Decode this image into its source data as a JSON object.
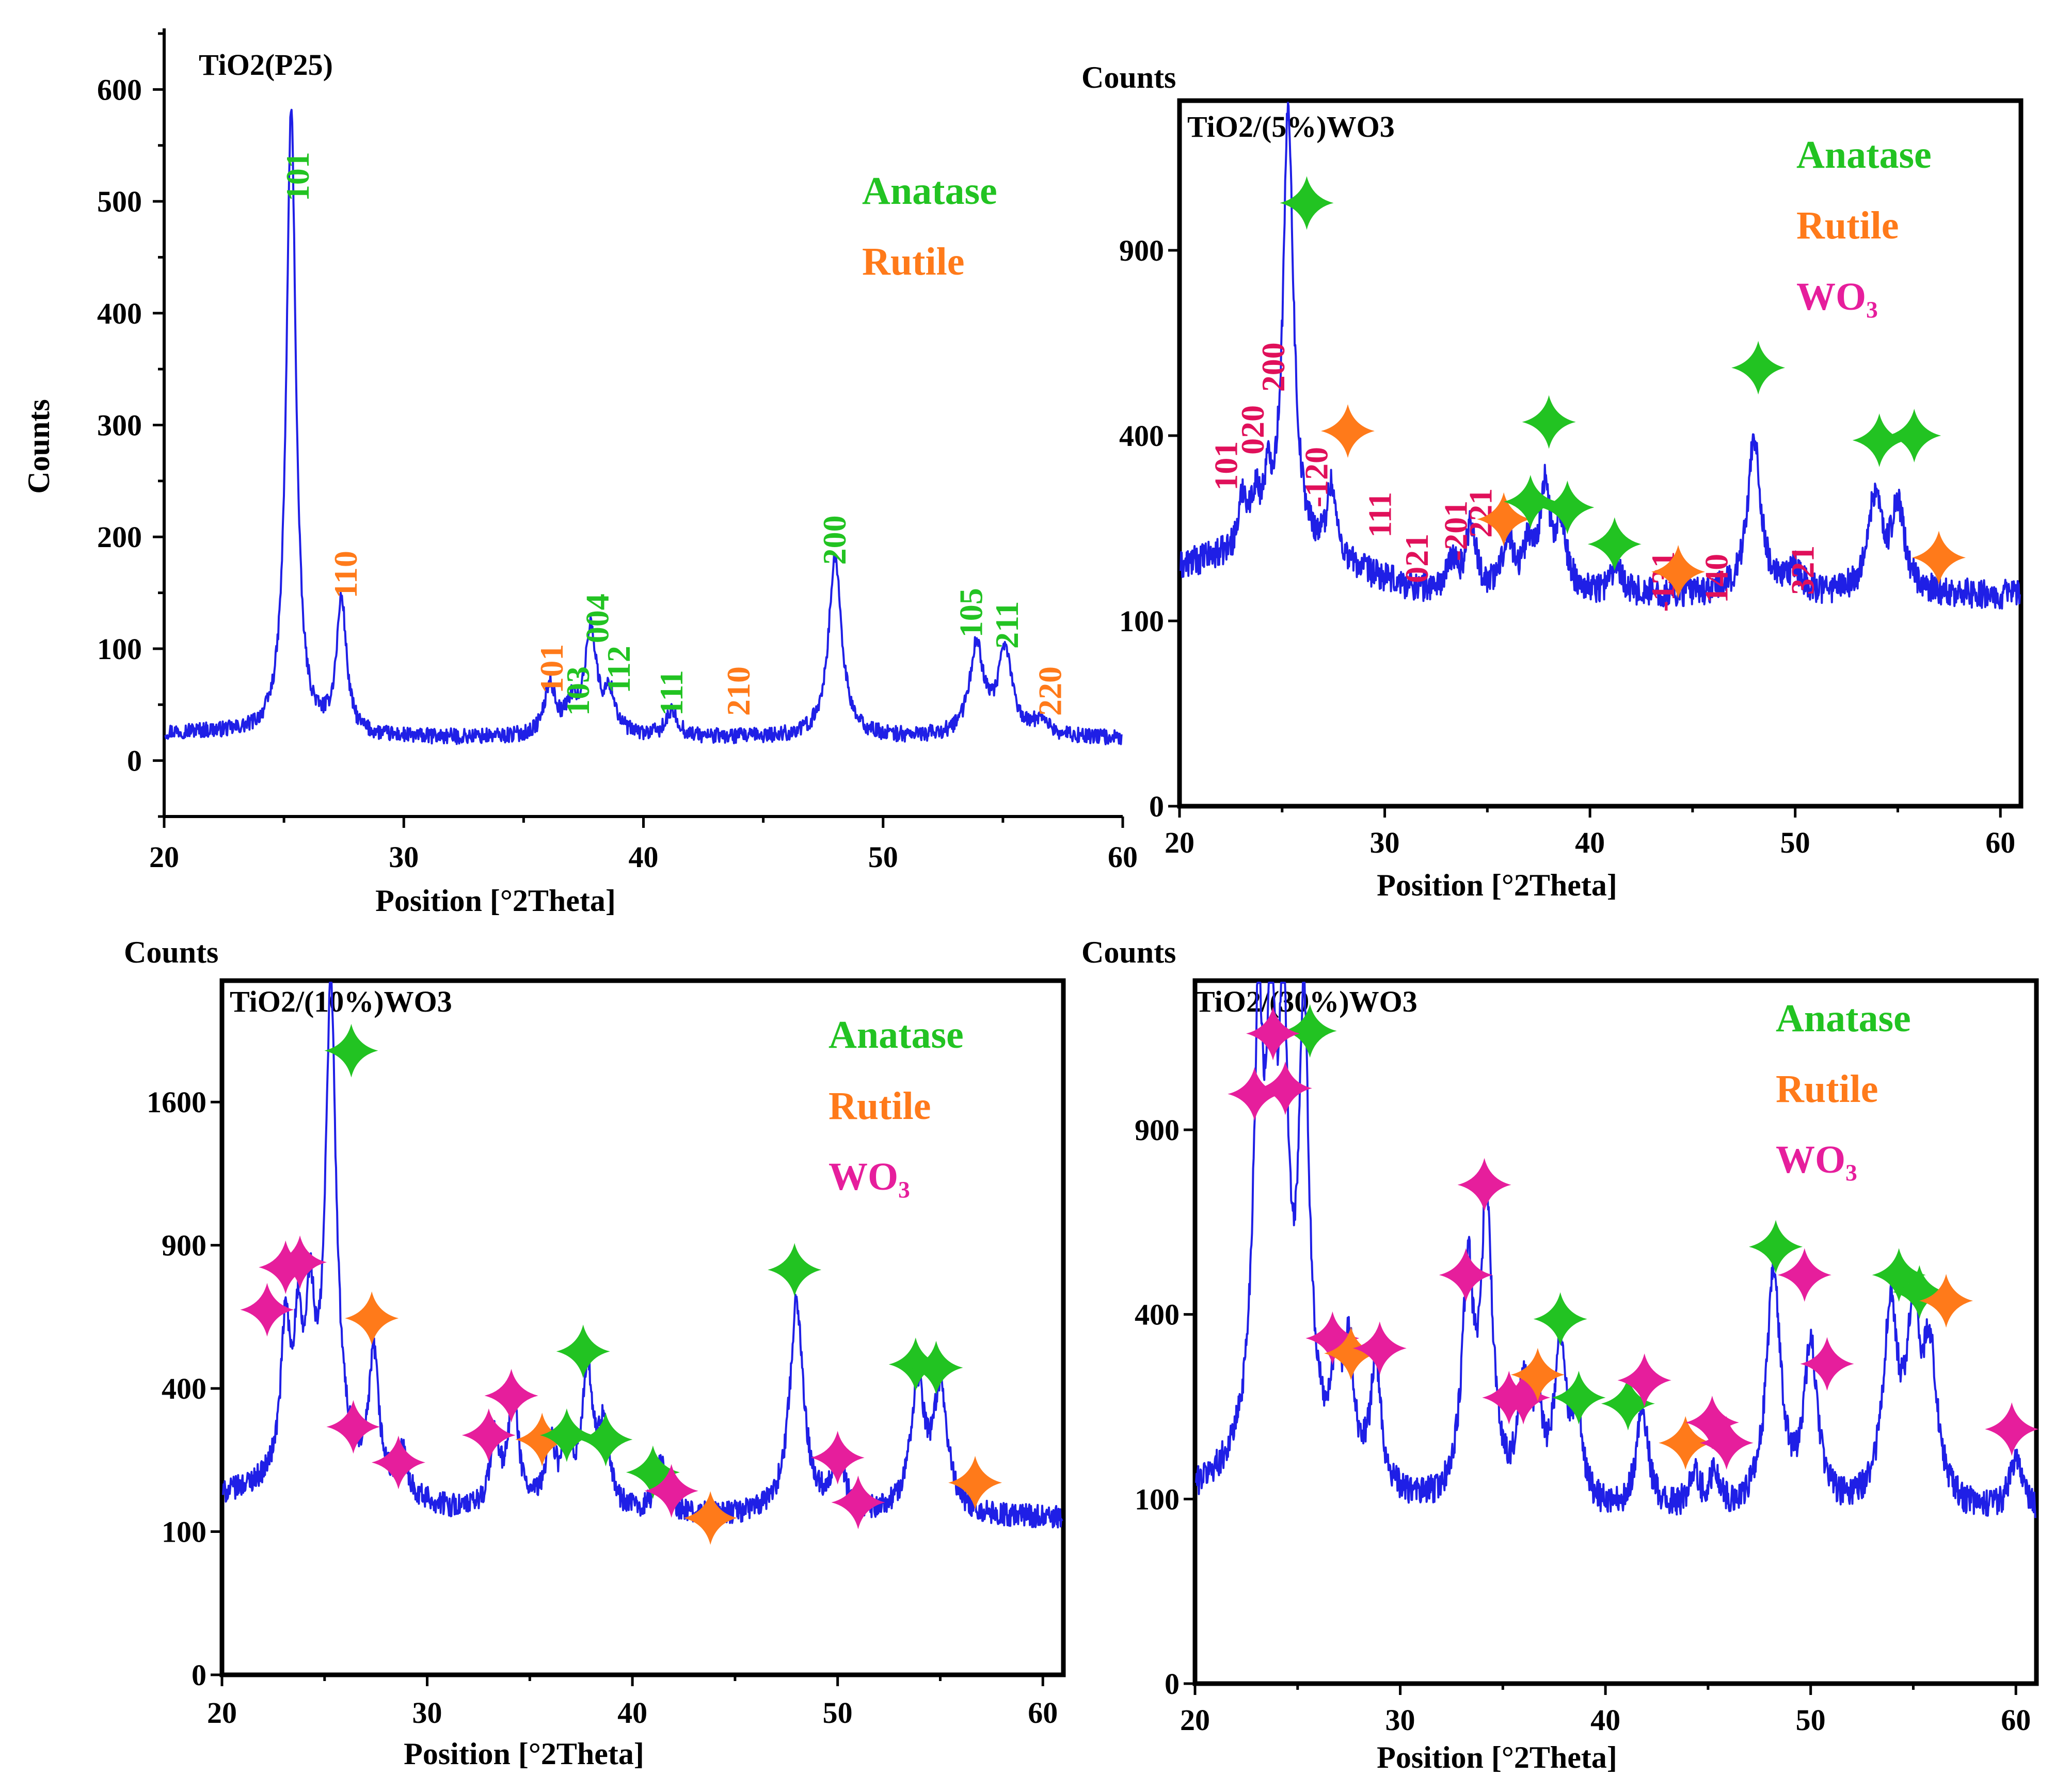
{
  "colors": {
    "anatase": "#22c322",
    "rutile": "#ff7a1a",
    "wo3": "#e61e9c",
    "wo3_label": "#e0105a",
    "trace": "#1f1fe6"
  },
  "chart_data": [
    {
      "type": "line",
      "title": "TiO2(P25)",
      "xlabel": "Position [°2Theta]",
      "ylabel": "Counts",
      "xlim": [
        20,
        60
      ],
      "ylim": [
        -50,
        650
      ],
      "xticks": [
        "20",
        "30",
        "40",
        "50",
        "60"
      ],
      "yticks": [
        "0",
        "100",
        "200",
        "300",
        "400",
        "500",
        "600"
      ],
      "baseline": 20,
      "peaks": [
        [
          25.3,
          560
        ],
        [
          27.4,
          120
        ],
        [
          36.1,
          45
        ],
        [
          37.0,
          25
        ],
        [
          37.8,
          95
        ],
        [
          38.6,
          35
        ],
        [
          41.2,
          22
        ],
        [
          48.0,
          160
        ],
        [
          53.9,
          80
        ],
        [
          55.1,
          75
        ],
        [
          56.6,
          15
        ]
      ],
      "legend": [
        {
          "label": "Anatase",
          "phase": "anatase"
        },
        {
          "label": "Rutile",
          "phase": "rutile"
        }
      ],
      "annotations": [
        {
          "text": "101",
          "x": 25.6,
          "y": 500,
          "phase": "anatase"
        },
        {
          "text": "110",
          "x": 27.6,
          "y": 145,
          "phase": "rutile"
        },
        {
          "text": "101",
          "x": 36.2,
          "y": 60,
          "phase": "rutile"
        },
        {
          "text": "103",
          "x": 37.3,
          "y": 40,
          "phase": "anatase"
        },
        {
          "text": "004",
          "x": 38.1,
          "y": 105,
          "phase": "anatase"
        },
        {
          "text": "112",
          "x": 39.0,
          "y": 60,
          "phase": "anatase"
        },
        {
          "text": "111",
          "x": 41.2,
          "y": 40,
          "phase": "anatase"
        },
        {
          "text": "210",
          "x": 44.0,
          "y": 40,
          "phase": "rutile"
        },
        {
          "text": "200",
          "x": 48.0,
          "y": 175,
          "phase": "anatase"
        },
        {
          "text": "105",
          "x": 53.7,
          "y": 110,
          "phase": "anatase"
        },
        {
          "text": "211",
          "x": 55.2,
          "y": 100,
          "phase": "anatase"
        },
        {
          "text": "220",
          "x": 57.0,
          "y": 40,
          "phase": "rutile"
        }
      ]
    },
    {
      "type": "line",
      "title": "TiO2/(5%)WO3",
      "xlabel": "Position [°2Theta]",
      "ylabel": "Counts",
      "xlim": [
        20,
        61
      ],
      "yscale": "sqrt",
      "ylim": [
        0,
        1450
      ],
      "xticks": [
        "20",
        "30",
        "40",
        "50",
        "60"
      ],
      "yticks": [
        "0",
        "100",
        "400",
        "900"
      ],
      "ytick_values": [
        0,
        100,
        400,
        900
      ],
      "baseline": 130,
      "peaks": [
        [
          23.1,
          90
        ],
        [
          23.7,
          80
        ],
        [
          24.3,
          100
        ],
        [
          25.3,
          1250
        ],
        [
          27.4,
          120
        ],
        [
          33.3,
          40
        ],
        [
          34.2,
          100
        ],
        [
          36.0,
          80
        ],
        [
          37.0,
          60
        ],
        [
          37.8,
          160
        ],
        [
          38.6,
          90
        ],
        [
          41.3,
          40
        ],
        [
          48.0,
          270
        ],
        [
          50.0,
          30
        ],
        [
          53.9,
          150
        ],
        [
          55.0,
          130
        ]
      ],
      "legend": [
        {
          "label": "Anatase",
          "phase": "anatase"
        },
        {
          "label": "Rutile",
          "phase": "rutile"
        },
        {
          "label": "WO₃",
          "phase": "wo3"
        }
      ],
      "annotations": [
        {
          "text": "101",
          "x": 22.3,
          "y": 290,
          "phase": "wo3"
        },
        {
          "text": "020",
          "x": 23.6,
          "y": 360,
          "phase": "wo3"
        },
        {
          "text": "200",
          "x": 24.6,
          "y": 500,
          "phase": "wo3"
        },
        {
          "text": "-120",
          "x": 26.7,
          "y": 260,
          "phase": "wo3"
        },
        {
          "text": "111",
          "x": 29.8,
          "y": 210,
          "phase": "wo3"
        },
        {
          "text": "021",
          "x": 31.6,
          "y": 145,
          "phase": "wo3"
        },
        {
          "text": "-201",
          "x": 33.5,
          "y": 175,
          "phase": "wo3"
        },
        {
          "text": "221",
          "x": 34.7,
          "y": 210,
          "phase": "wo3"
        },
        {
          "text": "-131",
          "x": 43.6,
          "y": 110,
          "phase": "wo3"
        },
        {
          "text": "140",
          "x": 46.2,
          "y": 120,
          "phase": "wo3"
        },
        {
          "text": "321",
          "x": 50.4,
          "y": 130,
          "phase": "wo3"
        }
      ],
      "markers": [
        {
          "x": 26.2,
          "y": 1060,
          "phase": "anatase"
        },
        {
          "x": 28.2,
          "y": 410,
          "phase": "rutile"
        },
        {
          "x": 35.8,
          "y": 240,
          "phase": "rutile"
        },
        {
          "x": 37.1,
          "y": 270,
          "phase": "anatase"
        },
        {
          "x": 38.0,
          "y": 430,
          "phase": "anatase"
        },
        {
          "x": 38.9,
          "y": 260,
          "phase": "anatase"
        },
        {
          "x": 41.2,
          "y": 200,
          "phase": "anatase"
        },
        {
          "x": 44.3,
          "y": 160,
          "phase": "rutile"
        },
        {
          "x": 48.2,
          "y": 560,
          "phase": "anatase"
        },
        {
          "x": 54.1,
          "y": 390,
          "phase": "anatase"
        },
        {
          "x": 55.8,
          "y": 400,
          "phase": "anatase"
        },
        {
          "x": 57.0,
          "y": 180,
          "phase": "rutile"
        }
      ]
    },
    {
      "type": "line",
      "title": "TiO2/(10%)WO3",
      "xlabel": "Position [°2Theta]",
      "ylabel": "Counts",
      "xlim": [
        20,
        61
      ],
      "yscale": "sqrt",
      "ylim": [
        0,
        2350
      ],
      "xticks": [
        "20",
        "30",
        "40",
        "50",
        "60"
      ],
      "yticks": [
        "0",
        "100",
        "400",
        "900",
        "1600"
      ],
      "ytick_values": [
        0,
        100,
        400,
        900,
        1600
      ],
      "baseline": 120,
      "peaks": [
        [
          23.1,
          420
        ],
        [
          23.7,
          380
        ],
        [
          24.3,
          480
        ],
        [
          25.3,
          2200
        ],
        [
          27.4,
          330
        ],
        [
          28.8,
          80
        ],
        [
          33.3,
          140
        ],
        [
          34.2,
          240
        ],
        [
          36.0,
          130
        ],
        [
          36.8,
          110
        ],
        [
          37.8,
          330
        ],
        [
          38.6,
          160
        ],
        [
          41.4,
          100
        ],
        [
          48.0,
          560
        ],
        [
          50.0,
          110
        ],
        [
          53.9,
          290
        ],
        [
          55.0,
          280
        ]
      ],
      "legend": [
        {
          "label": "Anatase",
          "phase": "anatase"
        },
        {
          "label": "Rutile",
          "phase": "rutile"
        },
        {
          "label": "WO₃",
          "phase": "wo3"
        }
      ],
      "markers": [
        {
          "x": 26.3,
          "y": 1900,
          "phase": "anatase"
        },
        {
          "x": 22.2,
          "y": 650,
          "phase": "wo3"
        },
        {
          "x": 23.1,
          "y": 810,
          "phase": "wo3"
        },
        {
          "x": 23.8,
          "y": 830,
          "phase": "wo3"
        },
        {
          "x": 27.3,
          "y": 620,
          "phase": "rutile"
        },
        {
          "x": 26.4,
          "y": 300,
          "phase": "wo3"
        },
        {
          "x": 28.6,
          "y": 220,
          "phase": "wo3"
        },
        {
          "x": 33.0,
          "y": 280,
          "phase": "wo3"
        },
        {
          "x": 34.1,
          "y": 380,
          "phase": "wo3"
        },
        {
          "x": 35.6,
          "y": 270,
          "phase": "rutile"
        },
        {
          "x": 36.8,
          "y": 280,
          "phase": "anatase"
        },
        {
          "x": 37.6,
          "y": 510,
          "phase": "anatase"
        },
        {
          "x": 38.7,
          "y": 270,
          "phase": "anatase"
        },
        {
          "x": 41.0,
          "y": 200,
          "phase": "anatase"
        },
        {
          "x": 41.9,
          "y": 165,
          "phase": "wo3"
        },
        {
          "x": 43.8,
          "y": 120,
          "phase": "rutile"
        },
        {
          "x": 47.9,
          "y": 800,
          "phase": "anatase"
        },
        {
          "x": 50.0,
          "y": 230,
          "phase": "wo3"
        },
        {
          "x": 51.0,
          "y": 145,
          "phase": "wo3"
        },
        {
          "x": 53.8,
          "y": 470,
          "phase": "anatase"
        },
        {
          "x": 54.8,
          "y": 460,
          "phase": "anatase"
        },
        {
          "x": 56.7,
          "y": 180,
          "phase": "rutile"
        }
      ]
    },
    {
      "type": "line",
      "title": "TiO2/(30%)WO3",
      "xlabel": "Position [°2Theta]",
      "ylabel": "Counts",
      "xlim": [
        20,
        61
      ],
      "yscale": "sqrt",
      "ylim": [
        0,
        1450
      ],
      "xticks": [
        "20",
        "30",
        "40",
        "50",
        "60"
      ],
      "yticks": [
        "0",
        "100",
        "400",
        "900"
      ],
      "ytick_values": [
        0,
        100,
        400,
        900
      ],
      "baseline": 80,
      "peaks": [
        [
          23.1,
          1200
        ],
        [
          23.7,
          1200
        ],
        [
          24.3,
          1200
        ],
        [
          25.3,
          1250
        ],
        [
          26.9,
          180
        ],
        [
          27.5,
          210
        ],
        [
          28.8,
          200
        ],
        [
          33.3,
          420
        ],
        [
          34.2,
          620
        ],
        [
          36.0,
          160
        ],
        [
          36.7,
          130
        ],
        [
          37.8,
          260
        ],
        [
          38.6,
          120
        ],
        [
          41.8,
          140
        ],
        [
          44.3,
          40
        ],
        [
          45.3,
          40
        ],
        [
          48.2,
          420
        ],
        [
          50.0,
          250
        ],
        [
          53.9,
          330
        ],
        [
          55.0,
          300
        ],
        [
          55.8,
          230
        ],
        [
          60.0,
          60
        ]
      ],
      "legend": [
        {
          "label": "Anatase",
          "phase": "anatase"
        },
        {
          "label": "Rutile",
          "phase": "rutile"
        },
        {
          "label": "WO₃",
          "phase": "wo3"
        }
      ],
      "markers": [
        {
          "x": 25.6,
          "y": 1250,
          "phase": "anatase"
        },
        {
          "x": 22.9,
          "y": 1020,
          "phase": "wo3"
        },
        {
          "x": 23.8,
          "y": 1240,
          "phase": "wo3"
        },
        {
          "x": 24.4,
          "y": 1040,
          "phase": "wo3"
        },
        {
          "x": 26.7,
          "y": 350,
          "phase": "wo3"
        },
        {
          "x": 27.6,
          "y": 320,
          "phase": "rutile"
        },
        {
          "x": 29.0,
          "y": 330,
          "phase": "wo3"
        },
        {
          "x": 33.2,
          "y": 490,
          "phase": "wo3"
        },
        {
          "x": 34.1,
          "y": 730,
          "phase": "wo3"
        },
        {
          "x": 35.3,
          "y": 240,
          "phase": "wo3"
        },
        {
          "x": 36.0,
          "y": 240,
          "phase": "wo3"
        },
        {
          "x": 36.7,
          "y": 280,
          "phase": "rutile"
        },
        {
          "x": 37.8,
          "y": 390,
          "phase": "anatase"
        },
        {
          "x": 38.7,
          "y": 240,
          "phase": "anatase"
        },
        {
          "x": 41.1,
          "y": 230,
          "phase": "anatase"
        },
        {
          "x": 41.9,
          "y": 270,
          "phase": "wo3"
        },
        {
          "x": 43.9,
          "y": 170,
          "phase": "rutile"
        },
        {
          "x": 45.2,
          "y": 200,
          "phase": "wo3"
        },
        {
          "x": 45.9,
          "y": 170,
          "phase": "wo3"
        },
        {
          "x": 48.3,
          "y": 560,
          "phase": "anatase"
        },
        {
          "x": 49.7,
          "y": 490,
          "phase": "wo3"
        },
        {
          "x": 50.8,
          "y": 300,
          "phase": "wo3"
        },
        {
          "x": 54.3,
          "y": 490,
          "phase": "anatase"
        },
        {
          "x": 55.3,
          "y": 450,
          "phase": "anatase"
        },
        {
          "x": 56.6,
          "y": 430,
          "phase": "rutile"
        },
        {
          "x": 59.8,
          "y": 190,
          "phase": "wo3"
        }
      ]
    }
  ]
}
